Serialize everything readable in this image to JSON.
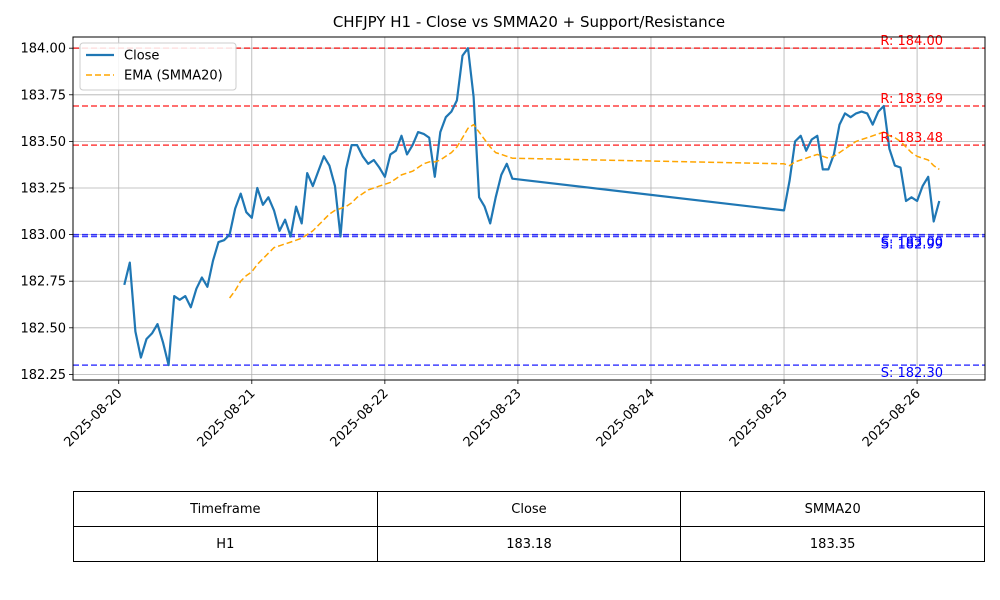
{
  "chart_data": {
    "type": "line",
    "title": "CHFJPY H1 - Close vs SMMA20 + Support/Resistance",
    "xlabel": "",
    "ylabel": "",
    "x_ticks": [
      "2025-08-20",
      "2025-08-21",
      "2025-08-22",
      "2025-08-23",
      "2025-08-24",
      "2025-08-25",
      "2025-08-26"
    ],
    "y_ticks": [
      "182.25",
      "182.50",
      "182.75",
      "183.00",
      "183.25",
      "183.50",
      "183.75",
      "184.00"
    ],
    "xlim": [
      "2025-08-19 15:45",
      "2025-08-26 12:15"
    ],
    "ylim": [
      182.22,
      184.06
    ],
    "grid": true,
    "legend_position": "top-left",
    "series": [
      {
        "name": "Close",
        "color": "#1f77b4",
        "style": "solid",
        "points": [
          [
            "2025-08-20 01:00",
            182.73
          ],
          [
            "2025-08-20 02:00",
            182.85
          ],
          [
            "2025-08-20 03:00",
            182.48
          ],
          [
            "2025-08-20 04:00",
            182.34
          ],
          [
            "2025-08-20 05:00",
            182.44
          ],
          [
            "2025-08-20 06:00",
            182.47
          ],
          [
            "2025-08-20 07:00",
            182.52
          ],
          [
            "2025-08-20 08:00",
            182.42
          ],
          [
            "2025-08-20 09:00",
            182.3
          ],
          [
            "2025-08-20 10:00",
            182.67
          ],
          [
            "2025-08-20 11:00",
            182.65
          ],
          [
            "2025-08-20 12:00",
            182.67
          ],
          [
            "2025-08-20 13:00",
            182.61
          ],
          [
            "2025-08-20 14:00",
            182.71
          ],
          [
            "2025-08-20 15:00",
            182.77
          ],
          [
            "2025-08-20 16:00",
            182.72
          ],
          [
            "2025-08-20 17:00",
            182.86
          ],
          [
            "2025-08-20 18:00",
            182.96
          ],
          [
            "2025-08-20 19:00",
            182.97
          ],
          [
            "2025-08-20 20:00",
            183.0
          ],
          [
            "2025-08-20 21:00",
            183.14
          ],
          [
            "2025-08-20 22:00",
            183.22
          ],
          [
            "2025-08-20 23:00",
            183.12
          ],
          [
            "2025-08-21 00:00",
            183.09
          ],
          [
            "2025-08-21 01:00",
            183.25
          ],
          [
            "2025-08-21 02:00",
            183.16
          ],
          [
            "2025-08-21 03:00",
            183.2
          ],
          [
            "2025-08-21 04:00",
            183.13
          ],
          [
            "2025-08-21 05:00",
            183.02
          ],
          [
            "2025-08-21 06:00",
            183.08
          ],
          [
            "2025-08-21 07:00",
            182.99
          ],
          [
            "2025-08-21 08:00",
            183.15
          ],
          [
            "2025-08-21 09:00",
            183.06
          ],
          [
            "2025-08-21 10:00",
            183.33
          ],
          [
            "2025-08-21 11:00",
            183.26
          ],
          [
            "2025-08-21 12:00",
            183.34
          ],
          [
            "2025-08-21 13:00",
            183.42
          ],
          [
            "2025-08-21 14:00",
            183.37
          ],
          [
            "2025-08-21 15:00",
            183.26
          ],
          [
            "2025-08-21 16:00",
            182.99
          ],
          [
            "2025-08-21 17:00",
            183.35
          ],
          [
            "2025-08-21 18:00",
            183.48
          ],
          [
            "2025-08-21 19:00",
            183.48
          ],
          [
            "2025-08-21 20:00",
            183.42
          ],
          [
            "2025-08-21 21:00",
            183.38
          ],
          [
            "2025-08-21 22:00",
            183.4
          ],
          [
            "2025-08-21 23:00",
            183.36
          ],
          [
            "2025-08-22 00:00",
            183.31
          ],
          [
            "2025-08-22 01:00",
            183.43
          ],
          [
            "2025-08-22 02:00",
            183.45
          ],
          [
            "2025-08-22 03:00",
            183.53
          ],
          [
            "2025-08-22 04:00",
            183.43
          ],
          [
            "2025-08-22 05:00",
            183.48
          ],
          [
            "2025-08-22 06:00",
            183.55
          ],
          [
            "2025-08-22 07:00",
            183.54
          ],
          [
            "2025-08-22 08:00",
            183.52
          ],
          [
            "2025-08-22 09:00",
            183.31
          ],
          [
            "2025-08-22 10:00",
            183.55
          ],
          [
            "2025-08-22 11:00",
            183.63
          ],
          [
            "2025-08-22 12:00",
            183.66
          ],
          [
            "2025-08-22 13:00",
            183.72
          ],
          [
            "2025-08-22 14:00",
            183.96
          ],
          [
            "2025-08-22 15:00",
            184.0
          ],
          [
            "2025-08-22 16:00",
            183.74
          ],
          [
            "2025-08-22 17:00",
            183.2
          ],
          [
            "2025-08-22 18:00",
            183.15
          ],
          [
            "2025-08-22 19:00",
            183.06
          ],
          [
            "2025-08-22 20:00",
            183.2
          ],
          [
            "2025-08-22 21:00",
            183.32
          ],
          [
            "2025-08-22 22:00",
            183.38
          ],
          [
            "2025-08-22 23:00",
            183.3
          ],
          [
            "2025-08-25 00:00",
            183.13
          ],
          [
            "2025-08-25 01:00",
            183.29
          ],
          [
            "2025-08-25 02:00",
            183.5
          ],
          [
            "2025-08-25 03:00",
            183.53
          ],
          [
            "2025-08-25 04:00",
            183.45
          ],
          [
            "2025-08-25 05:00",
            183.51
          ],
          [
            "2025-08-25 06:00",
            183.53
          ],
          [
            "2025-08-25 07:00",
            183.35
          ],
          [
            "2025-08-25 08:00",
            183.35
          ],
          [
            "2025-08-25 09:00",
            183.43
          ],
          [
            "2025-08-25 10:00",
            183.59
          ],
          [
            "2025-08-25 11:00",
            183.65
          ],
          [
            "2025-08-25 12:00",
            183.63
          ],
          [
            "2025-08-25 13:00",
            183.65
          ],
          [
            "2025-08-25 14:00",
            183.66
          ],
          [
            "2025-08-25 15:00",
            183.65
          ],
          [
            "2025-08-25 16:00",
            183.59
          ],
          [
            "2025-08-25 17:00",
            183.66
          ],
          [
            "2025-08-25 18:00",
            183.69
          ],
          [
            "2025-08-25 19:00",
            183.46
          ],
          [
            "2025-08-25 20:00",
            183.37
          ],
          [
            "2025-08-25 21:00",
            183.36
          ],
          [
            "2025-08-25 22:00",
            183.18
          ],
          [
            "2025-08-25 23:00",
            183.2
          ],
          [
            "2025-08-26 00:00",
            183.18
          ],
          [
            "2025-08-26 01:00",
            183.26
          ],
          [
            "2025-08-26 02:00",
            183.31
          ],
          [
            "2025-08-26 03:00",
            183.07
          ],
          [
            "2025-08-26 04:00",
            183.18
          ]
        ]
      },
      {
        "name": "EMA (SMMA20)",
        "color": "#ffa500",
        "style": "dashed",
        "points": [
          [
            "2025-08-20 20:00",
            182.66
          ],
          [
            "2025-08-20 21:00",
            182.7
          ],
          [
            "2025-08-20 22:00",
            182.75
          ],
          [
            "2025-08-20 23:00",
            182.78
          ],
          [
            "2025-08-21 00:00",
            182.8
          ],
          [
            "2025-08-21 01:00",
            182.84
          ],
          [
            "2025-08-21 02:00",
            182.87
          ],
          [
            "2025-08-21 03:00",
            182.9
          ],
          [
            "2025-08-21 04:00",
            182.93
          ],
          [
            "2025-08-21 05:00",
            182.94
          ],
          [
            "2025-08-21 06:00",
            182.95
          ],
          [
            "2025-08-21 07:00",
            182.96
          ],
          [
            "2025-08-21 08:00",
            182.97
          ],
          [
            "2025-08-21 09:00",
            182.98
          ],
          [
            "2025-08-21 10:00",
            183.0
          ],
          [
            "2025-08-21 11:00",
            183.02
          ],
          [
            "2025-08-21 12:00",
            183.05
          ],
          [
            "2025-08-21 13:00",
            183.08
          ],
          [
            "2025-08-21 14:00",
            183.11
          ],
          [
            "2025-08-21 15:00",
            183.13
          ],
          [
            "2025-08-21 16:00",
            183.14
          ],
          [
            "2025-08-21 17:00",
            183.15
          ],
          [
            "2025-08-21 18:00",
            183.17
          ],
          [
            "2025-08-21 19:00",
            183.2
          ],
          [
            "2025-08-21 20:00",
            183.22
          ],
          [
            "2025-08-21 21:00",
            183.24
          ],
          [
            "2025-08-21 22:00",
            183.25
          ],
          [
            "2025-08-21 23:00",
            183.26
          ],
          [
            "2025-08-22 00:00",
            183.27
          ],
          [
            "2025-08-22 01:00",
            183.28
          ],
          [
            "2025-08-22 02:00",
            183.3
          ],
          [
            "2025-08-22 03:00",
            183.32
          ],
          [
            "2025-08-22 04:00",
            183.33
          ],
          [
            "2025-08-22 05:00",
            183.34
          ],
          [
            "2025-08-22 06:00",
            183.36
          ],
          [
            "2025-08-22 07:00",
            183.38
          ],
          [
            "2025-08-22 08:00",
            183.39
          ],
          [
            "2025-08-22 09:00",
            183.39
          ],
          [
            "2025-08-22 10:00",
            183.4
          ],
          [
            "2025-08-22 11:00",
            183.42
          ],
          [
            "2025-08-22 12:00",
            183.44
          ],
          [
            "2025-08-22 13:00",
            183.47
          ],
          [
            "2025-08-22 14:00",
            183.52
          ],
          [
            "2025-08-22 15:00",
            183.57
          ],
          [
            "2025-08-22 16:00",
            183.59
          ],
          [
            "2025-08-22 17:00",
            183.55
          ],
          [
            "2025-08-22 18:00",
            183.51
          ],
          [
            "2025-08-22 19:00",
            183.47
          ],
          [
            "2025-08-22 20:00",
            183.44
          ],
          [
            "2025-08-22 21:00",
            183.43
          ],
          [
            "2025-08-22 22:00",
            183.42
          ],
          [
            "2025-08-22 23:00",
            183.41
          ],
          [
            "2025-08-25 00:00",
            183.38
          ],
          [
            "2025-08-25 01:00",
            183.37
          ],
          [
            "2025-08-25 02:00",
            183.39
          ],
          [
            "2025-08-25 03:00",
            183.4
          ],
          [
            "2025-08-25 04:00",
            183.41
          ],
          [
            "2025-08-25 05:00",
            183.42
          ],
          [
            "2025-08-25 06:00",
            183.43
          ],
          [
            "2025-08-25 07:00",
            183.42
          ],
          [
            "2025-08-25 08:00",
            183.41
          ],
          [
            "2025-08-25 09:00",
            183.42
          ],
          [
            "2025-08-25 10:00",
            183.44
          ],
          [
            "2025-08-25 11:00",
            183.46
          ],
          [
            "2025-08-25 12:00",
            183.48
          ],
          [
            "2025-08-25 13:00",
            183.5
          ],
          [
            "2025-08-25 14:00",
            183.51
          ],
          [
            "2025-08-25 15:00",
            183.52
          ],
          [
            "2025-08-25 16:00",
            183.53
          ],
          [
            "2025-08-25 17:00",
            183.54
          ],
          [
            "2025-08-25 18:00",
            183.55
          ],
          [
            "2025-08-25 19:00",
            183.53
          ],
          [
            "2025-08-25 20:00",
            183.52
          ],
          [
            "2025-08-25 21:00",
            183.5
          ],
          [
            "2025-08-25 22:00",
            183.47
          ],
          [
            "2025-08-25 23:00",
            183.44
          ],
          [
            "2025-08-26 00:00",
            183.42
          ],
          [
            "2025-08-26 01:00",
            183.41
          ],
          [
            "2025-08-26 02:00",
            183.4
          ],
          [
            "2025-08-26 03:00",
            183.37
          ],
          [
            "2025-08-26 04:00",
            183.35
          ]
        ]
      }
    ],
    "levels": [
      {
        "kind": "resistance",
        "value": 184.0,
        "label": "R: 184.00",
        "color": "#ff0000"
      },
      {
        "kind": "resistance",
        "value": 183.69,
        "label": "R: 183.69",
        "color": "#ff0000"
      },
      {
        "kind": "resistance",
        "value": 183.48,
        "label": "R: 183.48",
        "color": "#ff0000"
      },
      {
        "kind": "support",
        "value": 182.99,
        "label": "S: 182.99",
        "color": "#0000ff"
      },
      {
        "kind": "support",
        "value": 183.0,
        "label": "S: 183.00",
        "color": "#0000ff"
      },
      {
        "kind": "support",
        "value": 182.3,
        "label": "S: 182.30",
        "color": "#0000ff"
      }
    ]
  },
  "table": {
    "headers": [
      "Timeframe",
      "Close",
      "SMMA20"
    ],
    "rows": [
      [
        "H1",
        "183.18",
        "183.35"
      ]
    ]
  }
}
